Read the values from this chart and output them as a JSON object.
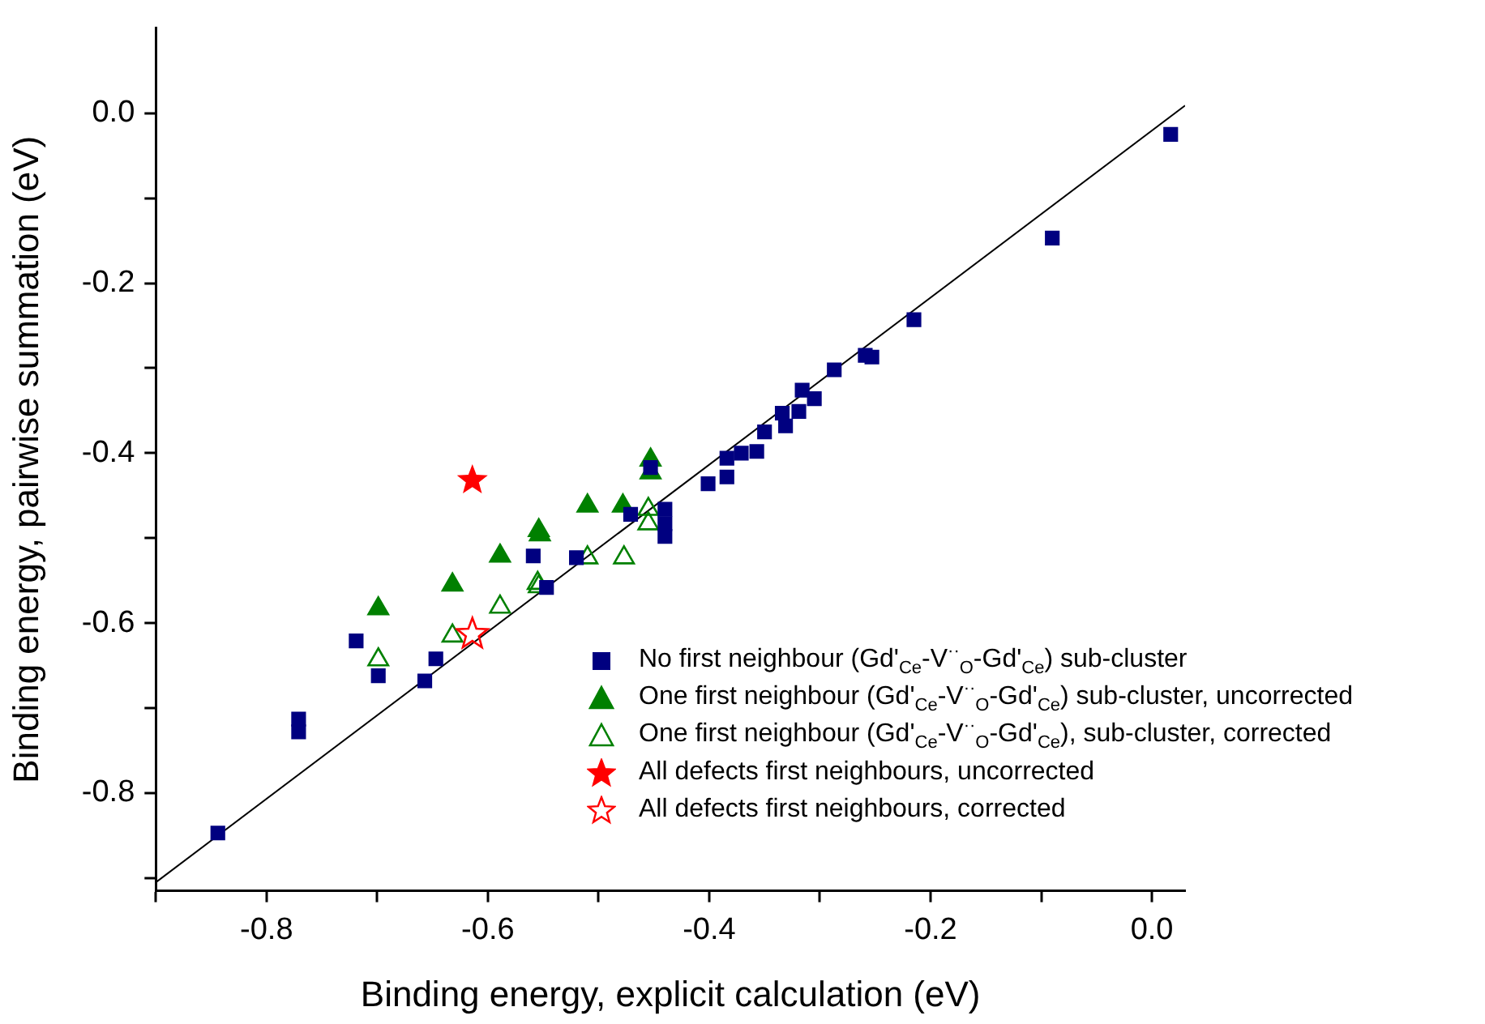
{
  "chart_data": {
    "type": "scatter",
    "xlabel": "Binding energy, explicit calculation (eV)",
    "ylabel": "Binding energy, pairwise summation (eV)",
    "xlim": [
      -0.9,
      0.03
    ],
    "xticks": [
      {
        "value": -0.9,
        "label": null
      },
      -0.8,
      {
        "value": -0.7,
        "label": null
      },
      -0.6,
      {
        "value": -0.5,
        "label": null
      },
      -0.4,
      {
        "value": -0.3,
        "label": null
      },
      -0.2,
      {
        "value": -0.1,
        "label": null
      },
      {
        "value": 0,
        "label": "0.0"
      }
    ],
    "ylim": [
      -0.915,
      0.1
    ],
    "yticks": [
      {
        "value": -0.9,
        "label": null
      },
      -0.8,
      {
        "value": -0.7,
        "label": null
      },
      -0.6,
      {
        "value": -0.5,
        "label": null
      },
      -0.4,
      {
        "value": -0.3,
        "label": null
      },
      -0.2,
      {
        "value": -0.1,
        "label": null
      },
      {
        "value": 0,
        "label": "0.0"
      }
    ],
    "grid": false,
    "legend": "bottom right",
    "series": [
      {
        "name": "No first neighbour (Gd'$_{Ce}$-V$^{··}$$_{O}$-Gd'$_{Ce}$) sub-cluster",
        "color": "#000080",
        "marker": "square",
        "x": [
          -0.844,
          -0.771,
          -0.771,
          -0.719,
          -0.699,
          -0.657,
          -0.647,
          -0.559,
          -0.547,
          -0.52,
          -0.471,
          -0.453,
          -0.44,
          -0.44,
          -0.44,
          -0.401,
          -0.384,
          -0.384,
          -0.371,
          -0.357,
          -0.35,
          -0.331,
          -0.334,
          -0.319,
          -0.316,
          -0.305,
          -0.287,
          -0.259,
          -0.253,
          -0.215,
          -0.09,
          0.017
        ],
        "values": [
          -0.847,
          -0.713,
          -0.728,
          -0.621,
          -0.662,
          -0.668,
          -0.642,
          -0.521,
          -0.558,
          -0.523,
          -0.472,
          -0.417,
          -0.466,
          -0.483,
          -0.498,
          -0.436,
          -0.428,
          -0.406,
          -0.4,
          -0.398,
          -0.375,
          -0.368,
          -0.353,
          -0.351,
          -0.326,
          -0.336,
          -0.302,
          -0.285,
          -0.287,
          -0.243,
          -0.147,
          -0.025
        ]
      },
      {
        "name": "One first neighbour (Gd'$_{Ce}$-V$^{··}$$_{O}$-Gd'$_{Ce}$) sub-cluster, uncorrected",
        "color": "#008000",
        "marker": "triangle",
        "x": [
          -0.699,
          -0.632,
          -0.589,
          -0.554,
          -0.553,
          -0.51,
          -0.478,
          -0.453,
          -0.453
        ],
        "values": [
          -0.583,
          -0.555,
          -0.521,
          -0.491,
          -0.496,
          -0.462,
          -0.462,
          -0.408,
          -0.423
        ]
      },
      {
        "name": "One first neighbour (Gd'$_{Ce}$-V$^{··}$$_{O}$-Gd'$_{Ce}$), sub-cluster, corrected",
        "color": "#008000",
        "marker": "triangle",
        "x": [
          -0.699,
          -0.632,
          -0.589,
          -0.555,
          -0.554,
          -0.51,
          -0.477,
          -0.455,
          -0.455
        ],
        "values": [
          -0.643,
          -0.615,
          -0.581,
          -0.553,
          -0.557,
          -0.523,
          -0.523,
          -0.466,
          -0.483
        ]
      },
      {
        "name": "All defects first neighbours, uncorrected",
        "color": "#ff0000",
        "marker": "star",
        "x": [
          -0.614
        ],
        "values": [
          -0.432
        ]
      },
      {
        "name": "All defects first neighbours, corrected",
        "color": "#ff0000",
        "marker": "star",
        "x": [
          -0.614
        ],
        "values": [
          -0.613
        ]
      },
      {
        "type": "line",
        "color": "#000000",
        "marker": "none",
        "x": [
          -0.9,
          0.03
        ],
        "values": [
          -0.905,
          0.009
        ]
      }
    ]
  }
}
